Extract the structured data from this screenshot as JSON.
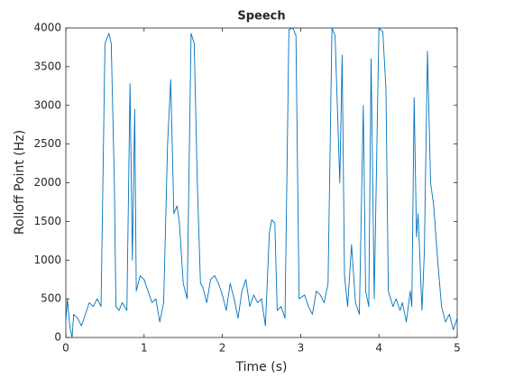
{
  "chart_data": {
    "type": "line",
    "title": "Speech",
    "x_label": "Time (s)",
    "y_label": "Rolloff Point (Hz)",
    "color": "#0072bd",
    "x": [
      0,
      0.02,
      0.05,
      0.08,
      0.1,
      0.15,
      0.2,
      0.25,
      0.3,
      0.35,
      0.4,
      0.45,
      0.5,
      0.55,
      0.58,
      0.62,
      0.64,
      0.68,
      0.72,
      0.78,
      0.82,
      0.85,
      0.88,
      0.9,
      0.95,
      1.0,
      1.05,
      1.1,
      1.15,
      1.2,
      1.25,
      1.3,
      1.34,
      1.38,
      1.42,
      1.45,
      1.5,
      1.55,
      1.6,
      1.64,
      1.68,
      1.72,
      1.75,
      1.8,
      1.85,
      1.9,
      1.95,
      2.0,
      2.05,
      2.1,
      2.15,
      2.2,
      2.25,
      2.3,
      2.35,
      2.4,
      2.45,
      2.5,
      2.55,
      2.6,
      2.63,
      2.67,
      2.7,
      2.75,
      2.8,
      2.85,
      2.9,
      2.94,
      2.98,
      3.05,
      3.1,
      3.15,
      3.2,
      3.25,
      3.3,
      3.35,
      3.4,
      3.44,
      3.5,
      3.53,
      3.56,
      3.6,
      3.65,
      3.7,
      3.75,
      3.8,
      3.83,
      3.87,
      3.9,
      3.94,
      4.0,
      4.05,
      4.09,
      4.12,
      4.18,
      4.22,
      4.27,
      4.3,
      4.35,
      4.4,
      4.42,
      4.45,
      4.48,
      4.5,
      4.55,
      4.58,
      4.62,
      4.66,
      4.7,
      4.75,
      4.8,
      4.85,
      4.9,
      4.95,
      5.0
    ],
    "values": [
      200,
      500,
      150,
      0,
      300,
      250,
      150,
      300,
      450,
      400,
      500,
      400,
      3800,
      3930,
      3800,
      2000,
      400,
      350,
      450,
      350,
      3280,
      1000,
      2950,
      600,
      800,
      750,
      600,
      450,
      500,
      200,
      450,
      2500,
      3330,
      1600,
      1700,
      1500,
      700,
      500,
      3930,
      3800,
      2000,
      700,
      650,
      450,
      750,
      800,
      700,
      550,
      350,
      700,
      500,
      250,
      600,
      750,
      400,
      550,
      450,
      500,
      150,
      1350,
      1520,
      1480,
      350,
      400,
      250,
      3980,
      4000,
      3900,
      500,
      550,
      400,
      300,
      600,
      550,
      450,
      700,
      4000,
      3900,
      2000,
      3650,
      800,
      400,
      1200,
      450,
      300,
      3000,
      600,
      400,
      3600,
      500,
      4000,
      3950,
      3200,
      600,
      400,
      500,
      350,
      450,
      200,
      600,
      400,
      3100,
      1300,
      1600,
      350,
      1100,
      3700,
      2000,
      1700,
      1000,
      400,
      200,
      300,
      100,
      250
    ],
    "xlim": [
      0,
      5
    ],
    "xticks": [
      0,
      1,
      2,
      3,
      4,
      5
    ],
    "ylim": [
      0,
      4000
    ],
    "yticks": [
      0,
      500,
      1000,
      1500,
      2000,
      2500,
      3000,
      3500,
      4000
    ]
  }
}
